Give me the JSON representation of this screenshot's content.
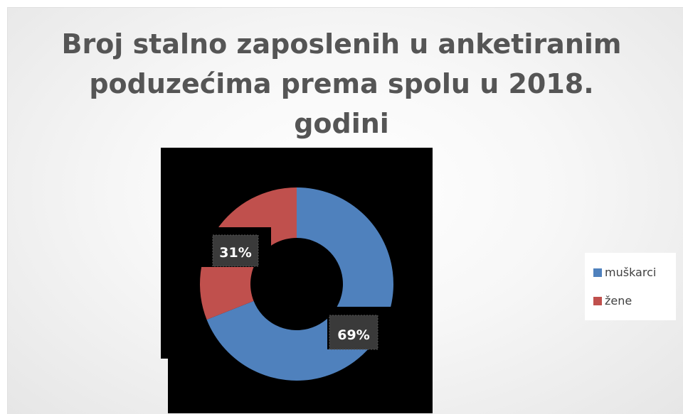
{
  "chart_data": {
    "type": "pie",
    "subtype": "doughnut",
    "title": "Broj stalno zaposlenih u anketiranim poduzećima prema spolu u 2018. godini",
    "title_lines": [
      "Broj stalno zaposlenih u anketiranim",
      "poduzećima prema spolu u 2018.",
      "godini"
    ],
    "categories": [
      "muškarci",
      "žene"
    ],
    "values": [
      69,
      31
    ],
    "data_labels": [
      "69%",
      "31%"
    ],
    "colors": [
      "#4f81bd",
      "#c0504d"
    ],
    "legend_position": "right"
  }
}
